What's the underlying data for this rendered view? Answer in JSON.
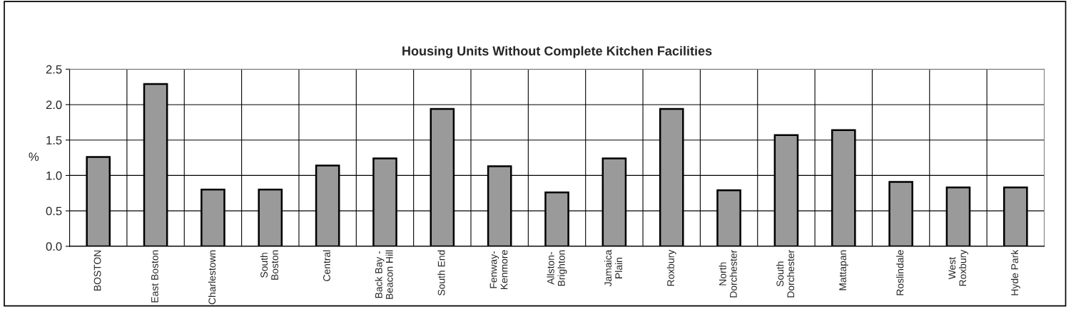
{
  "chart_data": {
    "type": "bar",
    "title": "Housing Units Without Complete Kitchen Facilities",
    "ylabel": "%",
    "categories": [
      "BOSTON",
      "East Boston",
      "Charlestown",
      "South\nBoston",
      "Central",
      "Back Bay -\nBeacon Hill",
      "South End",
      "Fenway-\nKenmore",
      "Allston-\nBrighton",
      "Jamaica\nPlain",
      "Roxbury",
      "North\nDorchester",
      "South\nDorchester",
      "Mattapan",
      "Roslindale",
      "West\nRoxbury",
      "Hyde Park"
    ],
    "values": [
      1.26,
      2.29,
      0.8,
      0.8,
      1.14,
      1.24,
      1.94,
      1.13,
      0.76,
      1.24,
      1.94,
      0.79,
      1.57,
      1.64,
      0.91,
      0.83,
      0.83
    ],
    "color": "#9a9a9a",
    "ylim": [
      0,
      2.5
    ],
    "yticks": [
      {
        "value": 0,
        "label": "0.0"
      },
      {
        "value": 0.5,
        "label": "0.5"
      },
      {
        "value": 1,
        "label": "1.0"
      },
      {
        "value": 1.5,
        "label": "1.5"
      },
      {
        "value": 2,
        "label": "2.0"
      },
      {
        "value": 2.5,
        "label": "2.5"
      }
    ],
    "grid": true
  }
}
